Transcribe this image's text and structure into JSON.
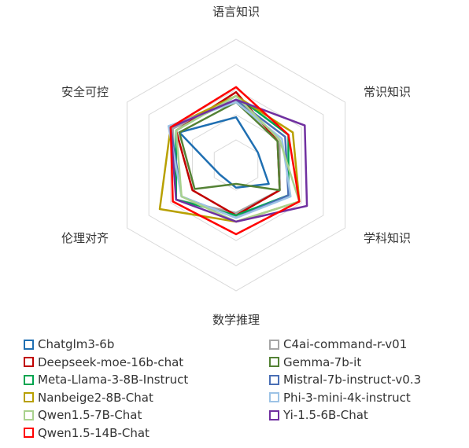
{
  "chart_data": {
    "type": "radar",
    "axes": [
      "语言知识",
      "常识知识",
      "学科知识",
      "数学推理",
      "伦理对齐",
      "安全可控"
    ],
    "range": [
      0,
      1
    ],
    "rings": 5,
    "grid": true,
    "legend_position": "bottom",
    "series": [
      {
        "name": "Chatglm3-6b",
        "color": "#1f6fb2",
        "values": [
          0.38,
          0.2,
          0.3,
          0.18,
          0.15,
          0.52
        ]
      },
      {
        "name": "C4ai-command-r-v01",
        "color": "#a6a6a6",
        "values": [
          0.52,
          0.4,
          0.4,
          0.38,
          0.55,
          0.58
        ]
      },
      {
        "name": "Deepseek-moe-16b-chat",
        "color": "#c00000",
        "values": [
          0.58,
          0.38,
          0.4,
          0.4,
          0.4,
          0.55
        ]
      },
      {
        "name": "Gemma-7b-it",
        "color": "#548235",
        "values": [
          0.5,
          0.38,
          0.4,
          0.15,
          0.38,
          0.52
        ]
      },
      {
        "name": "Meta-Llama-3-8B-Instruct",
        "color": "#00a550",
        "values": [
          0.55,
          0.48,
          0.48,
          0.4,
          0.55,
          0.55
        ]
      },
      {
        "name": "Mistral-7b-instruct-v0.3",
        "color": "#4a6fb5",
        "values": [
          0.52,
          0.45,
          0.48,
          0.42,
          0.5,
          0.6
        ]
      },
      {
        "name": "Nanbeige2-8B-Chat",
        "color": "#b8a000",
        "values": [
          0.55,
          0.52,
          0.58,
          0.45,
          0.7,
          0.6
        ]
      },
      {
        "name": "Phi-3-mini-4k-instruct",
        "color": "#9dc3e6",
        "values": [
          0.5,
          0.42,
          0.5,
          0.42,
          0.5,
          0.62
        ]
      },
      {
        "name": "Qwen1.5-7B-Chat",
        "color": "#a9d18e",
        "values": [
          0.55,
          0.4,
          0.58,
          0.45,
          0.5,
          0.55
        ]
      },
      {
        "name": "Yi-1.5-6B-Chat",
        "color": "#7030a0",
        "values": [
          0.52,
          0.63,
          0.65,
          0.45,
          0.55,
          0.6
        ]
      },
      {
        "name": "Qwen1.5-14B-Chat",
        "color": "#ff0000",
        "values": [
          0.62,
          0.48,
          0.58,
          0.55,
          0.58,
          0.6
        ]
      }
    ]
  }
}
